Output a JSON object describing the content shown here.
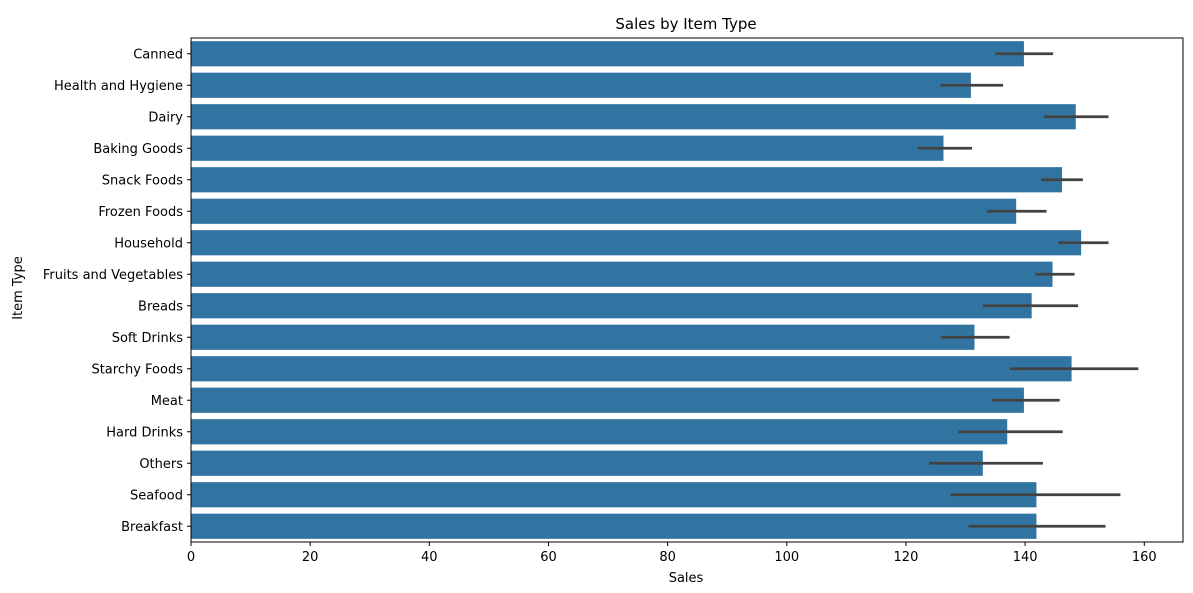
{
  "chart_data": {
    "type": "bar",
    "orientation": "horizontal",
    "title": "Sales by Item Type",
    "xlabel": "Sales",
    "ylabel": "Item Type",
    "xlim": [
      0,
      166.5
    ],
    "xticks": [
      0,
      20,
      40,
      60,
      80,
      100,
      120,
      140,
      160
    ],
    "grid": false,
    "bar_color": "#3274a1",
    "errorbar_color": "#424242",
    "categories": [
      "Canned",
      "Health and Hygiene",
      "Dairy",
      "Baking Goods",
      "Snack Foods",
      "Frozen Foods",
      "Household",
      "Fruits and Vegetables",
      "Breads",
      "Soft Drinks",
      "Starchy Foods",
      "Meat",
      "Hard Drinks",
      "Others",
      "Seafood",
      "Breakfast"
    ],
    "values": [
      139.8,
      130.9,
      148.5,
      126.3,
      146.2,
      138.5,
      149.4,
      144.6,
      141.1,
      131.5,
      147.8,
      139.8,
      137.0,
      132.9,
      141.9,
      141.9
    ],
    "error_low": [
      135.0,
      125.8,
      143.2,
      122.0,
      142.7,
      133.6,
      145.6,
      141.7,
      132.9,
      125.9,
      137.4,
      134.4,
      128.8,
      123.9,
      127.5,
      130.5
    ],
    "error_high": [
      144.7,
      136.3,
      154.0,
      131.1,
      149.7,
      143.6,
      154.0,
      148.3,
      148.9,
      137.4,
      159.0,
      145.8,
      146.3,
      143.0,
      156.0,
      153.5
    ]
  }
}
